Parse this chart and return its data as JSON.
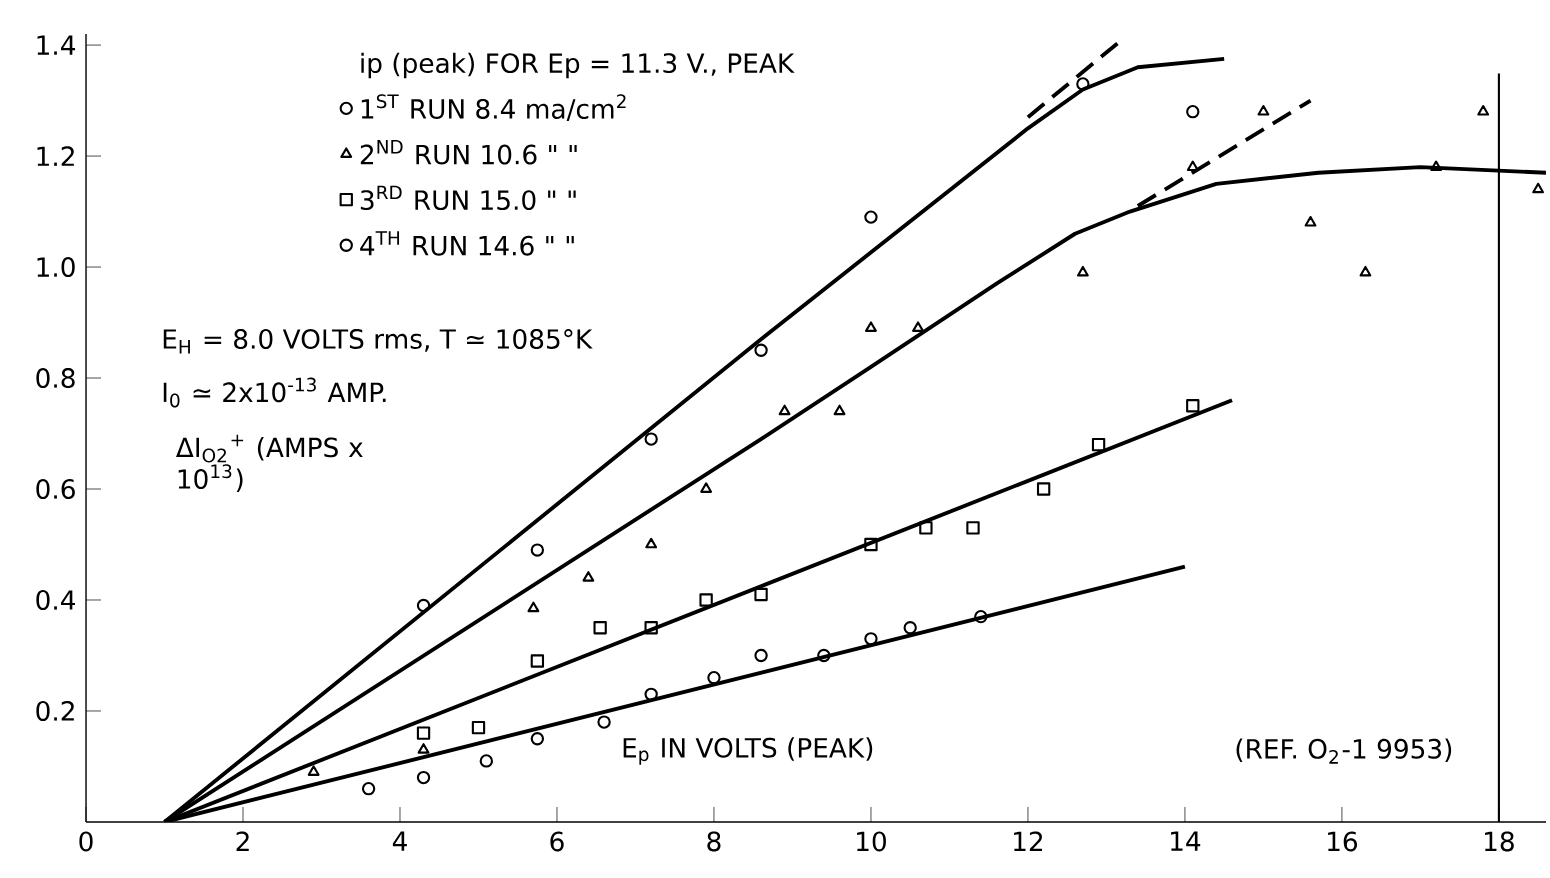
{
  "chart_data": {
    "type": "scatter",
    "legend": "top left",
    "legend_title": "ip (peak) FOR Ep = 11.3 V., PEAK",
    "xlabel": "E$_{p}$ IN VOLTS (PEAK)",
    "ylabel": "ΔI$_{O2}$$^{+}$ (AMPS x 10$^{13}$)",
    "xlim": [
      0,
      18.6
    ],
    "ylim": [
      0,
      1.42
    ],
    "xticks": [
      0,
      2,
      4,
      6,
      8,
      10,
      12,
      14,
      16,
      18
    ],
    "yticks": [
      0.2,
      0.4,
      0.6,
      0.8,
      {
        "value": 1.0,
        "label": "1.0"
      },
      1.2,
      1.4
    ],
    "annotations": [
      "E$_{H}$ = 8.0 VOLTS rms, T ≃ 1085°K",
      "I$_{0}$ ≃ 2x10$^{-13}$ AMP.",
      "(REF. O$_{2}$-1 9953)"
    ],
    "ref_lines": [
      {
        "axis": "x",
        "value": 18,
        "color": "#000000"
      }
    ],
    "series": [
      {
        "name": "1$^{ST}$ RUN   8.4 ma/cm$^{2}$",
        "marker": "circle",
        "color": "#000000",
        "x": [
          4.3,
          5.75,
          7.2,
          8.6,
          10.0,
          12.7,
          14.1
        ],
        "values": [
          0.39,
          0.49,
          0.69,
          0.85,
          1.09,
          1.33,
          1.28
        ]
      },
      {
        "name": "2$^{ND}$ RUN   10.6 \"  \"",
        "marker": "triangle",
        "color": "#000000",
        "x": [
          2.9,
          4.3,
          5.7,
          6.4,
          7.2,
          7.9,
          8.9,
          9.6,
          10.0,
          10.6,
          12.7,
          14.1,
          15.0,
          15.6,
          16.3,
          17.2,
          17.8,
          18.5
        ],
        "values": [
          0.09,
          0.13,
          0.385,
          0.44,
          0.5,
          0.6,
          0.74,
          0.74,
          0.89,
          0.89,
          0.99,
          1.18,
          1.28,
          1.08,
          0.99,
          1.18,
          1.28,
          1.14
        ]
      },
      {
        "name": "3$^{RD}$ RUN   15.0 \"  \"",
        "marker": "square",
        "color": "#000000",
        "x": [
          4.3,
          5.0,
          5.75,
          6.55,
          7.2,
          7.9,
          8.6,
          10.0,
          10.7,
          11.3,
          12.2,
          12.9,
          14.1
        ],
        "values": [
          0.16,
          0.17,
          0.29,
          0.35,
          0.35,
          0.4,
          0.41,
          0.5,
          0.53,
          0.53,
          0.6,
          0.68,
          0.75
        ]
      },
      {
        "name": "4$^{TH}$ RUN   14.6 \"  \"",
        "marker": "circle",
        "color": "#000000",
        "x": [
          3.6,
          4.3,
          5.1,
          5.75,
          6.6,
          7.2,
          8.0,
          8.6,
          9.4,
          10.0,
          10.5,
          11.4
        ],
        "values": [
          0.06,
          0.08,
          0.11,
          0.15,
          0.18,
          0.23,
          0.26,
          0.3,
          0.3,
          0.33,
          0.35,
          0.37
        ]
      },
      {
        "type": "line",
        "marker": "none",
        "line_style": "solid",
        "color": "#000000",
        "x": [
          1.0,
          8.6,
          12.0,
          12.7,
          13.4,
          14.5
        ],
        "values": [
          0,
          0.87,
          1.25,
          1.32,
          1.36,
          1.375
        ]
      },
      {
        "type": "line",
        "marker": "none",
        "line_style": "dashed",
        "color": "#000000",
        "x": [
          12.0,
          13.2
        ],
        "values": [
          1.27,
          1.41
        ]
      },
      {
        "type": "line",
        "marker": "none",
        "line_style": "solid",
        "color": "#000000",
        "x": [
          1.0,
          8.6,
          10.0,
          11.6,
          12.6,
          13.3,
          14.4,
          15.7,
          17.0,
          18.6
        ],
        "values": [
          0,
          0.69,
          0.82,
          0.97,
          1.06,
          1.1,
          1.15,
          1.17,
          1.18,
          1.17
        ]
      },
      {
        "type": "line",
        "marker": "none",
        "line_style": "dashed",
        "color": "#000000",
        "x": [
          13.4,
          15.6
        ],
        "values": [
          1.11,
          1.3
        ]
      },
      {
        "type": "line",
        "marker": "none",
        "line_style": "solid",
        "color": "#000000",
        "x": [
          1.0,
          14.6
        ],
        "values": [
          0,
          0.76
        ]
      },
      {
        "type": "line",
        "marker": "none",
        "line_style": "solid",
        "color": "#000000",
        "x": [
          1.0,
          14.0
        ],
        "values": [
          0,
          0.46
        ]
      }
    ]
  }
}
